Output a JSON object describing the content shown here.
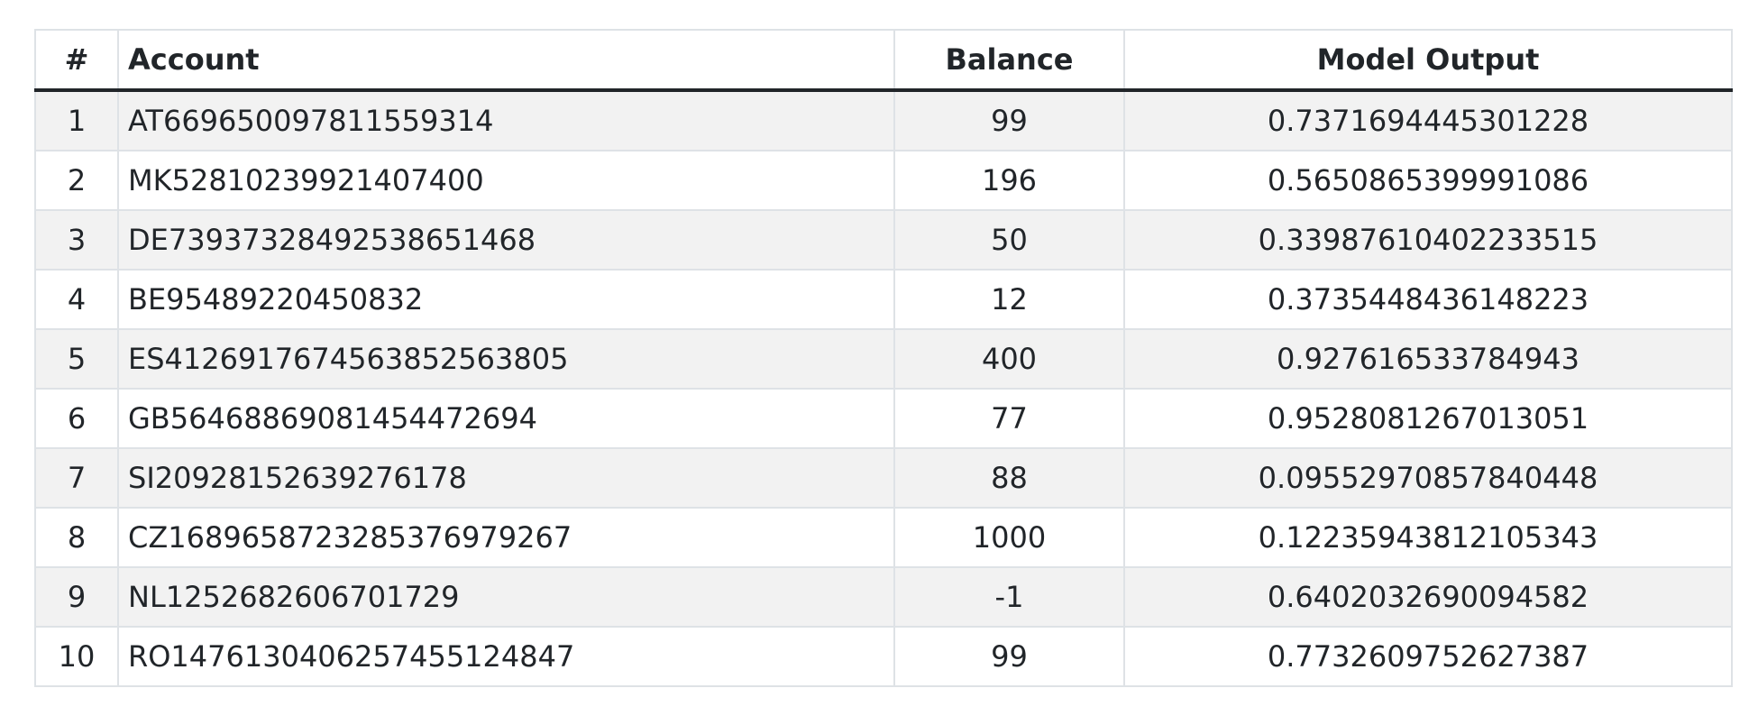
{
  "table": {
    "headers": [
      "#",
      "Account",
      "Balance",
      "Model Output"
    ],
    "rows": [
      {
        "idx": "1",
        "account": "AT669650097811559314",
        "balance": "99",
        "output": "0.7371694445301228"
      },
      {
        "idx": "2",
        "account": "MK52810239921407400",
        "balance": "196",
        "output": "0.5650865399991086"
      },
      {
        "idx": "3",
        "account": "DE73937328492538651468",
        "balance": "50",
        "output": "0.33987610402233515"
      },
      {
        "idx": "4",
        "account": "BE95489220450832",
        "balance": "12",
        "output": "0.3735448436148223"
      },
      {
        "idx": "5",
        "account": "ES4126917674563852563805",
        "balance": "400",
        "output": "0.927616533784943"
      },
      {
        "idx": "6",
        "account": "GB56468869081454472694",
        "balance": "77",
        "output": "0.9528081267013051"
      },
      {
        "idx": "7",
        "account": "SI20928152639276178",
        "balance": "88",
        "output": "0.09552970857840448"
      },
      {
        "idx": "8",
        "account": "CZ1689658723285376979267",
        "balance": "1000",
        "output": "0.12235943812105343"
      },
      {
        "idx": "9",
        "account": "NL1252682606701729",
        "balance": "-1",
        "output": "0.6402032690094582"
      },
      {
        "idx": "10",
        "account": "RO14761304062574551248​47",
        "balance": "99",
        "output": "0.7732609752627387"
      }
    ]
  }
}
